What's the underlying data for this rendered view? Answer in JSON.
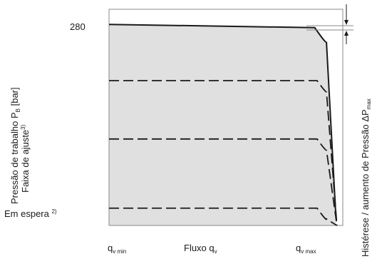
{
  "chart_data": {
    "type": "line",
    "xlabel": {
      "main": "Fluxo q",
      "sub": "v"
    },
    "ylabel_line1": {
      "main": "Pressão de trabalho P",
      "sub": "B",
      "tail": " [bar]"
    },
    "ylabel_line2": {
      "main": "Faixa de ajuste",
      "sup": "3)"
    },
    "right_label": {
      "main": "Histérese / aumento de Pressão ΔP",
      "sub": "max"
    },
    "x_ticks": [
      {
        "id": "qvmin",
        "main": "q",
        "sub": "v min"
      },
      {
        "id": "qvmax",
        "main": "q",
        "sub": "v max"
      }
    ],
    "y_ticks": [
      {
        "id": "280",
        "main": "280"
      },
      {
        "id": "standby",
        "main": "Em espera ",
        "sup": "2)"
      }
    ],
    "x_range": [
      0,
      1
    ],
    "y_range": [
      0,
      1
    ],
    "series": [
      {
        "style": "solid",
        "points": [
          [
            0,
            0.93
          ],
          [
            0.88,
            0.915
          ],
          [
            0.93,
            0.85
          ],
          [
            0.97,
            0.05
          ]
        ]
      },
      {
        "style": "dashed",
        "points": [
          [
            0,
            0.67
          ],
          [
            0.89,
            0.67
          ],
          [
            0.93,
            0.62
          ],
          [
            0.975,
            0
          ]
        ]
      },
      {
        "style": "dashed",
        "points": [
          [
            0,
            0.4
          ],
          [
            0.89,
            0.4
          ],
          [
            0.93,
            0.35
          ],
          [
            0.975,
            0
          ]
        ]
      },
      {
        "style": "dashed",
        "points": [
          [
            0,
            0.08
          ],
          [
            0.89,
            0.08
          ],
          [
            0.93,
            0.03
          ],
          [
            0.975,
            0
          ]
        ]
      }
    ],
    "fill_color": "#e0e0e0",
    "line_color": "#1a1a1a",
    "grid": false
  }
}
